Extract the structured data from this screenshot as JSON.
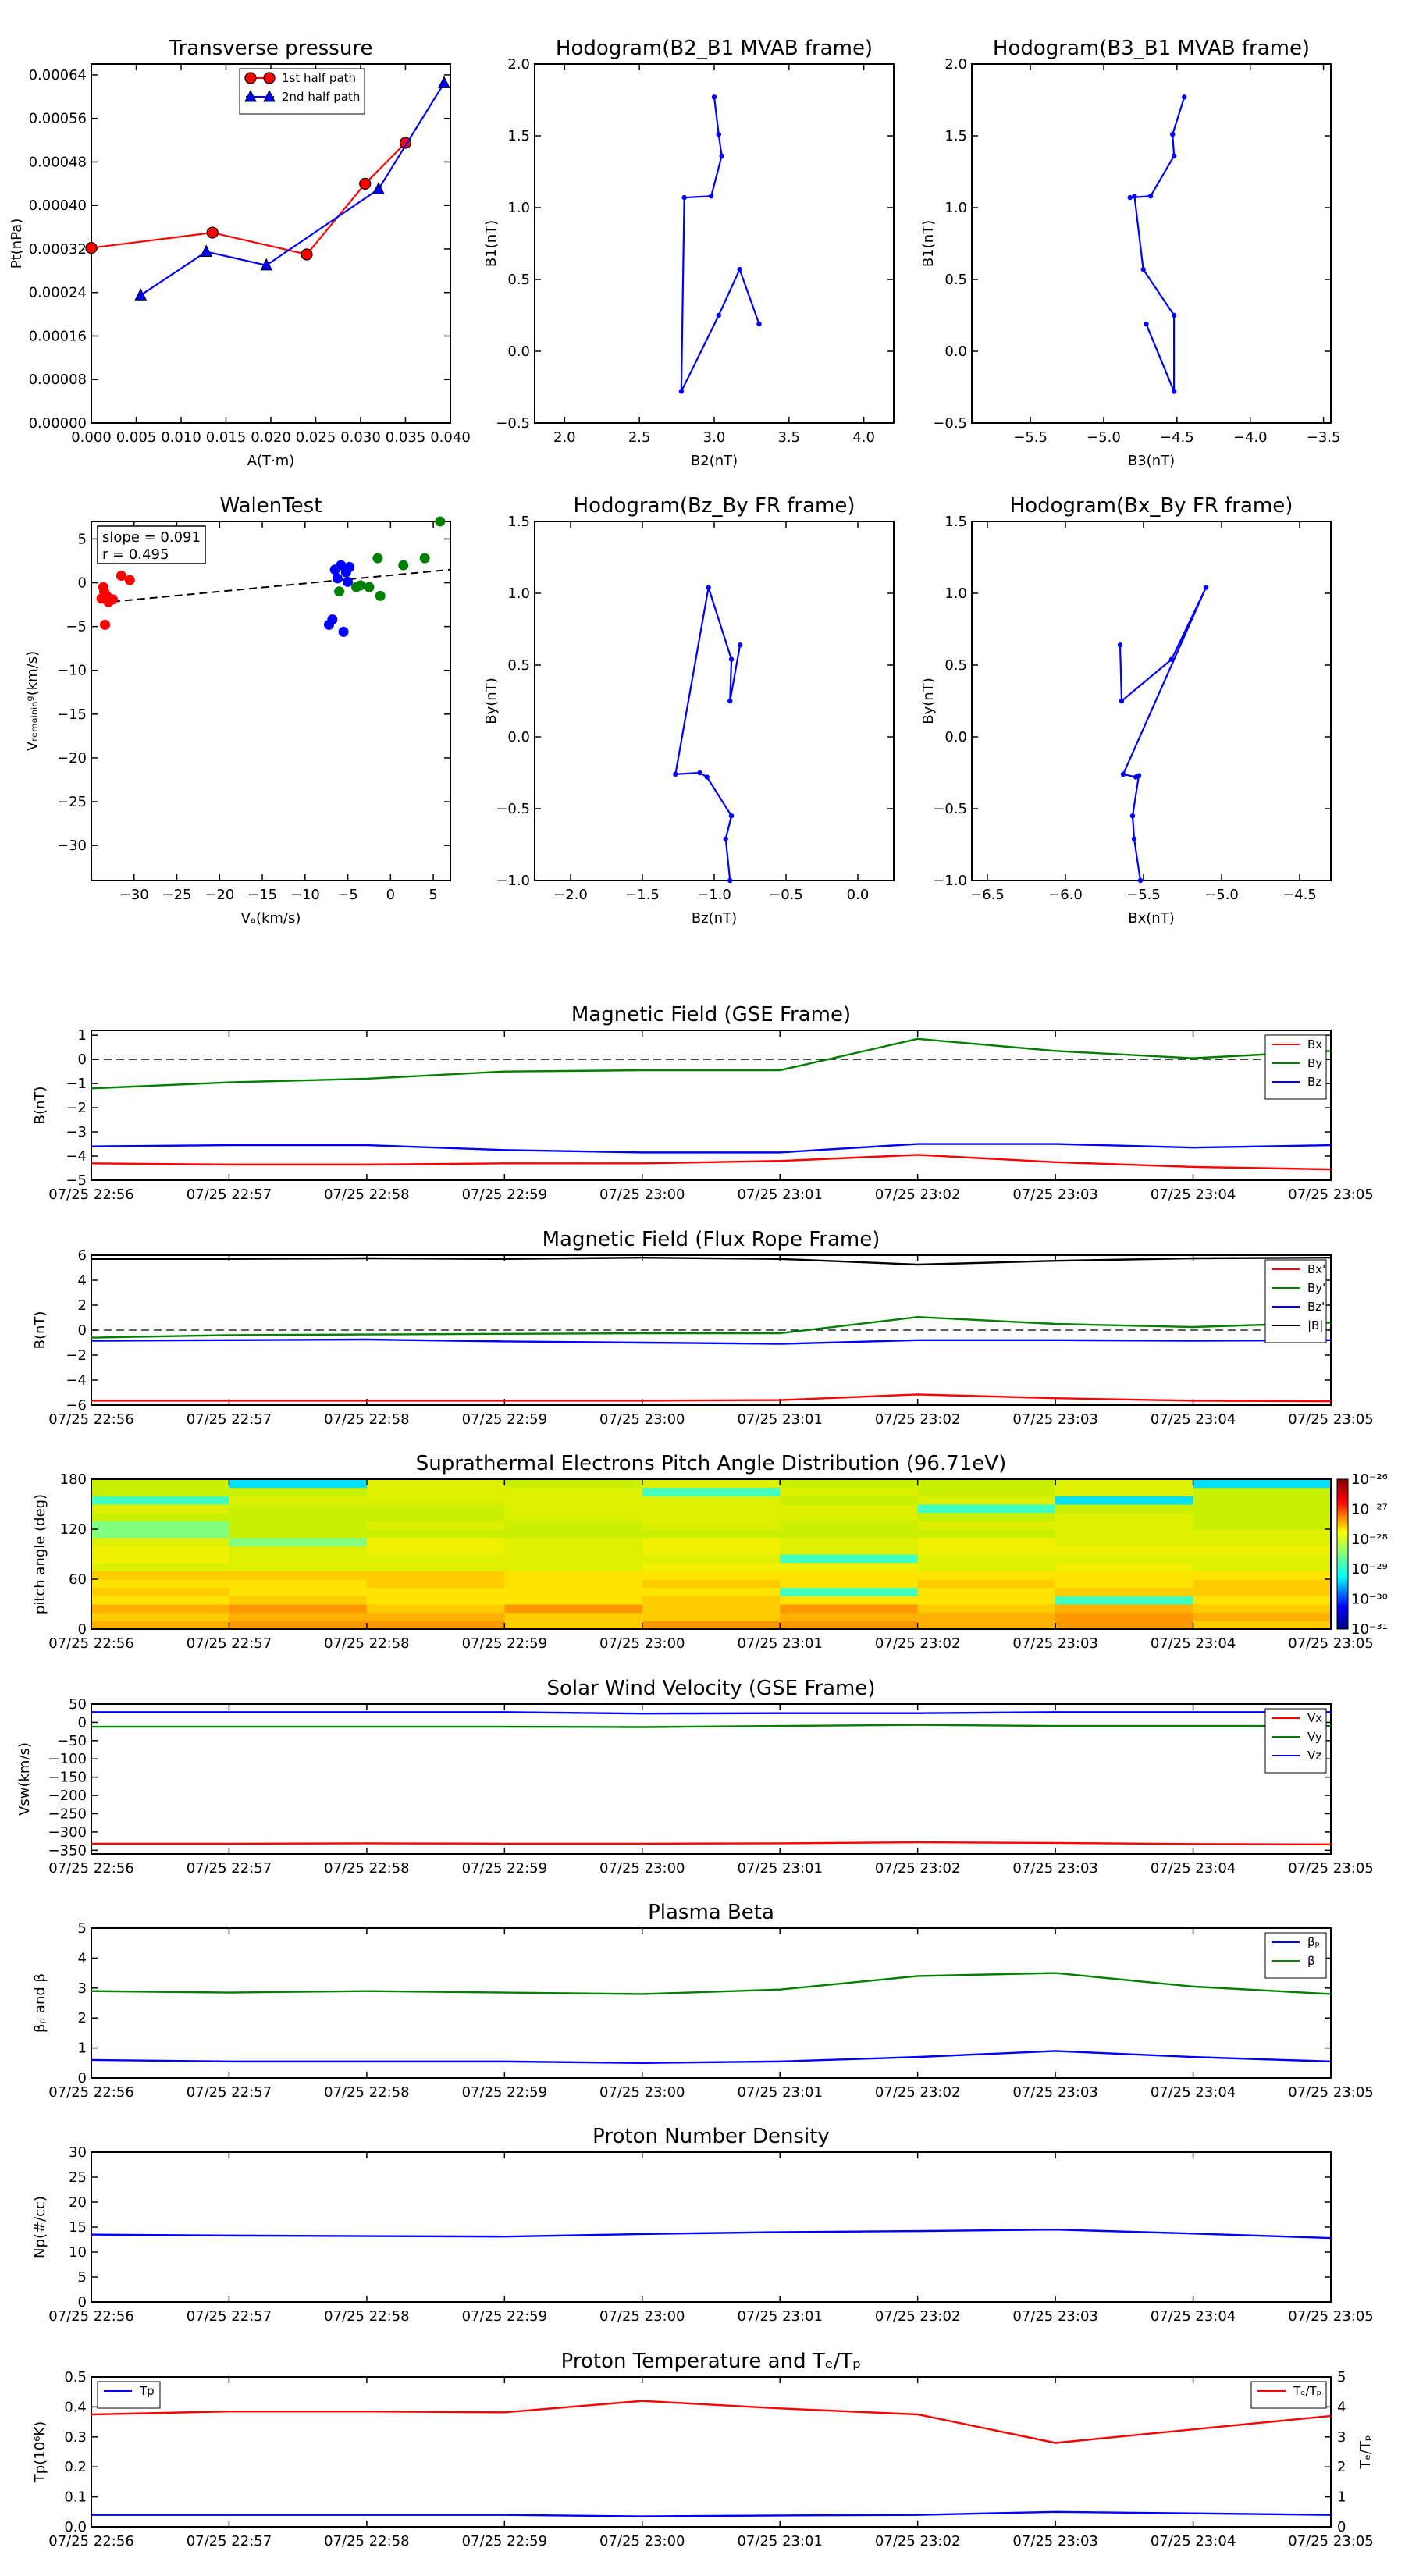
{
  "time_ticks": [
    "07/25 22:56",
    "07/25 22:57",
    "07/25 22:58",
    "07/25 22:59",
    "07/25 23:00",
    "07/25 23:01",
    "07/25 23:02",
    "07/25 23:03",
    "07/25 23:04",
    "07/25 23:05"
  ],
  "colors": {
    "red": "#ff0000",
    "green": "#008000",
    "blue": "#0000ff",
    "black": "#000000"
  },
  "chart_data": [
    {
      "id": "tp",
      "type": "line",
      "title": "Transverse pressure",
      "xlabel": "A(T·m)",
      "ylabel": "Pt(nPa)",
      "xlim": [
        0,
        0.04
      ],
      "ylim": [
        0,
        0.00066
      ],
      "xticks": [
        "0.000",
        "0.005",
        "0.010",
        "0.015",
        "0.020",
        "0.025",
        "0.030",
        "0.035",
        "0.040"
      ],
      "xtick_vals": [
        0,
        0.005,
        0.01,
        0.015,
        0.02,
        0.025,
        0.03,
        0.035,
        0.04
      ],
      "yticks": [
        "0.00000",
        "0.00008",
        "0.00016",
        "0.00024",
        "0.00032",
        "0.00040",
        "0.00048",
        "0.00056",
        "0.00064"
      ],
      "ytick_vals": [
        0,
        8e-05,
        0.00016,
        0.00024,
        0.00032,
        0.0004,
        0.00048,
        0.00056,
        0.00064
      ],
      "legend": "top-center",
      "series": [
        {
          "name": "1st half path",
          "color": "red",
          "marker": "circle",
          "x": [
            0.0,
            0.0135,
            0.024,
            0.0305,
            0.035
          ],
          "y": [
            0.000322,
            0.00035,
            0.00031,
            0.00044,
            0.000515
          ]
        },
        {
          "name": "2nd half path",
          "color": "blue",
          "marker": "triangle",
          "x": [
            0.0055,
            0.0128,
            0.0195,
            0.032,
            0.0393
          ],
          "y": [
            0.000235,
            0.000315,
            0.00029,
            0.00043,
            0.000625
          ]
        }
      ]
    },
    {
      "id": "h1",
      "type": "line",
      "title": "Hodogram(B2_B1 MVAB frame)",
      "xlabel": "B2(nT)",
      "ylabel": "B1(nT)",
      "xlim": [
        1.8,
        4.2
      ],
      "ylim": [
        -0.5,
        2.0
      ],
      "xticks": [
        "2.0",
        "2.5",
        "3.0",
        "3.5",
        "4.0"
      ],
      "xtick_vals": [
        2.0,
        2.5,
        3.0,
        3.5,
        4.0
      ],
      "yticks": [
        "−0.5",
        "0.0",
        "0.5",
        "1.0",
        "1.5",
        "2.0"
      ],
      "ytick_vals": [
        -0.5,
        0,
        0.5,
        1.0,
        1.5,
        2.0
      ],
      "series": [
        {
          "color": "blue",
          "marker": "dot",
          "x": [
            3.0,
            3.03,
            3.05,
            2.98,
            2.8,
            2.78,
            3.03,
            3.17,
            3.3
          ],
          "y": [
            1.77,
            1.51,
            1.36,
            1.08,
            1.07,
            -0.28,
            0.25,
            0.57,
            0.19
          ]
        }
      ]
    },
    {
      "id": "h2",
      "type": "line",
      "title": "Hodogram(B3_B1 MVAB frame)",
      "xlabel": "B3(nT)",
      "ylabel": "B1(nT)",
      "xlim": [
        -5.9,
        -3.45
      ],
      "ylim": [
        -0.5,
        2.0
      ],
      "xticks": [
        "−5.5",
        "−5.0",
        "−4.5",
        "−4.0",
        "−3.5"
      ],
      "xtick_vals": [
        -5.5,
        -5.0,
        -4.5,
        -4.0,
        -3.5
      ],
      "yticks": [
        "−0.5",
        "0.0",
        "0.5",
        "1.0",
        "1.5",
        "2.0"
      ],
      "ytick_vals": [
        -0.5,
        0,
        0.5,
        1.0,
        1.5,
        2.0
      ],
      "series": [
        {
          "color": "blue",
          "marker": "dot",
          "x": [
            -4.45,
            -4.53,
            -4.52,
            -4.68,
            -4.82,
            -4.79,
            -4.73,
            -4.52,
            -4.52,
            -4.71
          ],
          "y": [
            1.77,
            1.51,
            1.36,
            1.08,
            1.07,
            1.08,
            0.57,
            0.25,
            -0.28,
            0.19
          ]
        }
      ]
    },
    {
      "id": "walen",
      "type": "scatter",
      "title": "WalenTest",
      "xlabel": "Vₐ(km/s)",
      "ylabel": "Vᵣₑₘₐᵢₙᵢₙᵍ(km/s)",
      "xlim": [
        -35,
        7
      ],
      "ylim": [
        -34,
        7
      ],
      "xticks": [
        "−30",
        "−25",
        "−20",
        "−15",
        "−10",
        "−5",
        "0",
        "5"
      ],
      "xtick_vals": [
        -30,
        -25,
        -20,
        -15,
        -10,
        -5,
        0,
        5
      ],
      "yticks": [
        "−30",
        "−25",
        "−20",
        "−15",
        "−10",
        "−5",
        "0",
        "5"
      ],
      "ytick_vals": [
        -30,
        -25,
        -20,
        -15,
        -10,
        -5,
        0,
        5
      ],
      "annotation": [
        "slope = 0.091",
        "r = 0.495"
      ],
      "fit": {
        "x": [
          -34,
          7
        ],
        "y": [
          -2.3,
          1.5
        ]
      },
      "series": [
        {
          "color": "red",
          "x": [
            -33.5,
            -33.8,
            -33.2,
            -32.8,
            -33.0,
            -31.5,
            -30.5,
            -33.4,
            -33.6,
            -32.5
          ],
          "y": [
            -1.0,
            -1.8,
            -1.5,
            -2.0,
            -2.2,
            0.8,
            0.3,
            -4.8,
            -0.5,
            -1.9
          ]
        },
        {
          "color": "blue",
          "x": [
            -6.5,
            -5.8,
            -5.2,
            -6.8,
            -7.2,
            -5.5,
            -4.8,
            -5.0,
            -6.2
          ],
          "y": [
            1.5,
            2.0,
            1.2,
            -4.2,
            -4.8,
            -5.6,
            1.8,
            0.1,
            0.5
          ]
        },
        {
          "color": "green",
          "x": [
            -1.5,
            1.5,
            4.0,
            5.8,
            -3.5,
            -4.0,
            -6.0,
            -2.5,
            -1.2
          ],
          "y": [
            2.8,
            2.0,
            2.8,
            7.0,
            -0.3,
            -0.5,
            -1.0,
            -0.5,
            -1.5
          ]
        }
      ]
    },
    {
      "id": "h3",
      "type": "line",
      "title": "Hodogram(Bz_By FR frame)",
      "xlabel": "Bz(nT)",
      "ylabel": "By(nT)",
      "xlim": [
        -2.25,
        0.25
      ],
      "ylim": [
        -1.0,
        1.5
      ],
      "xticks": [
        "−2.0",
        "−1.5",
        "−1.0",
        "−0.5",
        "0.0"
      ],
      "xtick_vals": [
        -2.0,
        -1.5,
        -1.0,
        -0.5,
        0.0
      ],
      "yticks": [
        "−1.0",
        "−0.5",
        "0.0",
        "0.5",
        "1.0",
        "1.5"
      ],
      "ytick_vals": [
        -1.0,
        -0.5,
        0,
        0.5,
        1.0,
        1.5
      ],
      "series": [
        {
          "color": "blue",
          "marker": "dot",
          "x": [
            -0.82,
            -0.89,
            -0.88,
            -1.04,
            -1.27,
            -1.1,
            -1.05,
            -0.88,
            -0.92,
            -0.89
          ],
          "y": [
            0.64,
            0.25,
            0.54,
            1.04,
            -0.26,
            -0.25,
            -0.28,
            -0.55,
            -0.71,
            -1.0
          ]
        }
      ]
    },
    {
      "id": "h4",
      "type": "line",
      "title": "Hodogram(Bx_By FR frame)",
      "xlabel": "Bx(nT)",
      "ylabel": "By(nT)",
      "xlim": [
        -6.6,
        -4.3
      ],
      "ylim": [
        -1.0,
        1.5
      ],
      "xticks": [
        "−6.5",
        "−6.0",
        "−5.5",
        "−5.0",
        "−4.5"
      ],
      "xtick_vals": [
        -6.5,
        -6.0,
        -5.5,
        -5.0,
        -4.5
      ],
      "yticks": [
        "−1.0",
        "−0.5",
        "0.0",
        "0.5",
        "1.0",
        "1.5"
      ],
      "ytick_vals": [
        -1.0,
        -0.5,
        0,
        0.5,
        1.0,
        1.5
      ],
      "series": [
        {
          "color": "blue",
          "marker": "dot",
          "x": [
            -5.65,
            -5.64,
            -5.32,
            -5.1,
            -5.63,
            -5.55,
            -5.53,
            -5.57,
            -5.56,
            -5.52
          ],
          "y": [
            0.64,
            0.25,
            0.54,
            1.04,
            -0.26,
            -0.28,
            -0.27,
            -0.55,
            -0.71,
            -1.0
          ]
        }
      ]
    },
    {
      "id": "mag",
      "type": "line",
      "title": "Magnetic Field (GSE Frame)",
      "ylabel": "B(nT)",
      "ylim": [
        -5,
        1.2
      ],
      "yticks": [
        "−5",
        "−4",
        "−3",
        "−2",
        "−1",
        "0",
        "1"
      ],
      "ytick_vals": [
        -5,
        -4,
        -3,
        -2,
        -1,
        0,
        1
      ],
      "zeroline": true,
      "legend": "top-right",
      "series": [
        {
          "name": "Bx",
          "color": "red",
          "y": [
            -4.3,
            -4.35,
            -4.35,
            -4.3,
            -4.3,
            -4.2,
            -3.95,
            -4.25,
            -4.45,
            -4.55
          ]
        },
        {
          "name": "By",
          "color": "green",
          "y": [
            -1.2,
            -0.95,
            -0.8,
            -0.5,
            -0.45,
            -0.45,
            0.85,
            0.35,
            0.05,
            0.35
          ]
        },
        {
          "name": "Bz",
          "color": "blue",
          "y": [
            -3.6,
            -3.55,
            -3.55,
            -3.75,
            -3.85,
            -3.85,
            -3.5,
            -3.5,
            -3.65,
            -3.55
          ]
        }
      ]
    },
    {
      "id": "magfr",
      "type": "line",
      "title": "Magnetic Field (Flux Rope Frame)",
      "ylabel": "B(nT)",
      "ylim": [
        -6,
        6
      ],
      "yticks": [
        "−6",
        "−4",
        "−2",
        "0",
        "2",
        "4",
        "6"
      ],
      "ytick_vals": [
        -6,
        -4,
        -2,
        0,
        2,
        4,
        6
      ],
      "zeroline": true,
      "legend": "top-right",
      "series": [
        {
          "name": "Bx'",
          "color": "red",
          "y": [
            -5.65,
            -5.65,
            -5.65,
            -5.65,
            -5.65,
            -5.6,
            -5.15,
            -5.45,
            -5.65,
            -5.7
          ]
        },
        {
          "name": "By'",
          "color": "green",
          "y": [
            -0.6,
            -0.4,
            -0.35,
            -0.3,
            -0.25,
            -0.25,
            1.05,
            0.5,
            0.25,
            0.6
          ]
        },
        {
          "name": "Bz'",
          "color": "blue",
          "y": [
            -0.85,
            -0.8,
            -0.75,
            -0.9,
            -1.0,
            -1.1,
            -0.8,
            -0.8,
            -0.85,
            -0.8
          ]
        },
        {
          "name": "|B|",
          "color": "black",
          "y": [
            5.7,
            5.7,
            5.75,
            5.7,
            5.8,
            5.7,
            5.25,
            5.55,
            5.75,
            5.8
          ]
        }
      ]
    },
    {
      "id": "pad",
      "type": "heatmap",
      "title": "Suprathermal Electrons Pitch Angle Distribution (96.71eV)",
      "ylabel": "pitch angle (deg)",
      "ylim": [
        0,
        180
      ],
      "yticks": [
        "0",
        "60",
        "120",
        "180"
      ],
      "ytick_vals": [
        0,
        60,
        120,
        180
      ],
      "colorbar": {
        "labels": [
          "10⁻²⁶",
          "10⁻²⁷",
          "10⁻²⁸",
          "10⁻²⁹",
          "10⁻³⁰",
          "10⁻³¹"
        ]
      }
    },
    {
      "id": "vsw",
      "type": "line",
      "title": "Solar Wind Velocity (GSE Frame)",
      "ylabel": "Vsw(km/s)",
      "ylim": [
        -360,
        50
      ],
      "yticks": [
        "−350",
        "−300",
        "−250",
        "−200",
        "−150",
        "−100",
        "−50",
        "0",
        "50"
      ],
      "ytick_vals": [
        -350,
        -300,
        -250,
        -200,
        -150,
        -100,
        -50,
        0,
        50
      ],
      "legend": "top-right",
      "series": [
        {
          "name": "Vx",
          "color": "red",
          "y": [
            -332,
            -332,
            -331,
            -332,
            -332,
            -331,
            -328,
            -330,
            -333,
            -334
          ]
        },
        {
          "name": "Vy",
          "color": "green",
          "y": [
            -12,
            -12,
            -12,
            -12,
            -13,
            -10,
            -7,
            -10,
            -10,
            -10
          ]
        },
        {
          "name": "Vz",
          "color": "blue",
          "y": [
            28,
            28,
            28,
            28,
            24,
            25,
            25,
            28,
            28,
            28
          ]
        }
      ]
    },
    {
      "id": "beta",
      "type": "line",
      "title": "Plasma Beta",
      "ylabel": "βₚ and β",
      "ylim": [
        0,
        5
      ],
      "yticks": [
        "0",
        "1",
        "2",
        "3",
        "4",
        "5"
      ],
      "ytick_vals": [
        0,
        1,
        2,
        3,
        4,
        5
      ],
      "legend": "top-right",
      "series": [
        {
          "name": "βₚ",
          "color": "blue",
          "y": [
            0.6,
            0.55,
            0.55,
            0.55,
            0.5,
            0.55,
            0.7,
            0.9,
            0.7,
            0.55
          ]
        },
        {
          "name": "β",
          "color": "green",
          "y": [
            2.9,
            2.85,
            2.9,
            2.85,
            2.8,
            2.95,
            3.4,
            3.5,
            3.05,
            2.8
          ]
        }
      ]
    },
    {
      "id": "np",
      "type": "line",
      "title": "Proton Number Density",
      "ylabel": "Np(#/cc)",
      "ylim": [
        0,
        30
      ],
      "yticks": [
        "0",
        "5",
        "10",
        "15",
        "20",
        "25",
        "30"
      ],
      "ytick_vals": [
        0,
        5,
        10,
        15,
        20,
        25,
        30
      ],
      "series": [
        {
          "color": "blue",
          "y": [
            13.5,
            13.3,
            13.2,
            13.1,
            13.6,
            14.0,
            14.2,
            14.5,
            13.7,
            12.8
          ]
        }
      ]
    },
    {
      "id": "temp",
      "type": "line",
      "title": "Proton Temperature and Tₑ/Tₚ",
      "ylabel": "Tp(10⁶K)",
      "ylabel2": "Tₑ/Tₚ",
      "ylim": [
        0,
        0.5
      ],
      "yticks": [
        "0.0",
        "0.1",
        "0.2",
        "0.3",
        "0.4",
        "0.5"
      ],
      "ytick_vals": [
        0,
        0.1,
        0.2,
        0.3,
        0.4,
        0.5
      ],
      "ylim2": [
        0,
        5
      ],
      "yticks2": [
        "0",
        "1",
        "2",
        "3",
        "4",
        "5"
      ],
      "ytick_vals2": [
        0,
        1,
        2,
        3,
        4,
        5
      ],
      "series": [
        {
          "name": "Tp",
          "color": "blue",
          "y": [
            0.04,
            0.04,
            0.04,
            0.04,
            0.035,
            0.038,
            0.04,
            0.05,
            0.045,
            0.04
          ],
          "legend": "top-left"
        },
        {
          "name": "Tₑ/Tₚ",
          "color": "red",
          "axis": 2,
          "y": [
            3.75,
            3.85,
            3.85,
            3.82,
            4.2,
            3.95,
            3.75,
            2.8,
            3.25,
            3.7
          ],
          "legend": "top-right"
        }
      ]
    }
  ]
}
